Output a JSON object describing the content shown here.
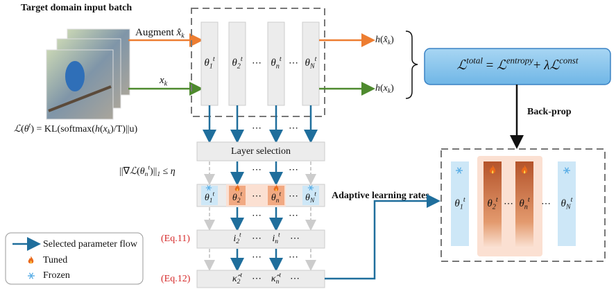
{
  "input_batch_title": "Target domain input batch",
  "augment_label": [
    {
      "t": "Augment "
    },
    {
      "m": "x̂"
    },
    {
      "sub": "k"
    }
  ],
  "x_label": [
    {
      "m": "x"
    },
    {
      "sub": "k"
    }
  ],
  "output_aug": [
    {
      "m": "h"
    },
    {
      "t": "("
    },
    {
      "m": "x̂"
    },
    {
      "sub": "k"
    },
    {
      "t": ")"
    }
  ],
  "output_orig": [
    {
      "m": "h"
    },
    {
      "t": "("
    },
    {
      "m": "x"
    },
    {
      "sub": "k"
    },
    {
      "t": ")"
    }
  ],
  "loss_total": [
    {
      "m": "ℒ"
    },
    {
      "sup": "total"
    },
    {
      "t": " = "
    },
    {
      "m": "ℒ"
    },
    {
      "sup": "entropy"
    },
    {
      "t": "+ "
    },
    {
      "m": "λℒ"
    },
    {
      "sup": "const"
    }
  ],
  "back_prop": "Back-prop",
  "loss_def": [
    {
      "m": "ℒ"
    },
    {
      "t": "("
    },
    {
      "m": "θ"
    },
    {
      "sup": "t"
    },
    {
      "t": ") = KL(softmax("
    },
    {
      "m": "h"
    },
    {
      "t": "("
    },
    {
      "m": "x"
    },
    {
      "sub": "k"
    },
    {
      "t": ")/T)||u)"
    }
  ],
  "layer_selection": "Layer selection",
  "grad_condition": [
    {
      "t": "||∇"
    },
    {
      "m": "ℒ"
    },
    {
      "t": "("
    },
    {
      "m": "θ"
    },
    {
      "sub": "n"
    },
    {
      "sup": "t"
    },
    {
      "t": ")||"
    },
    {
      "sub": "1"
    },
    {
      "t": " ≤ "
    },
    {
      "m": "η"
    }
  ],
  "adaptive_label": "Adaptive learning rates",
  "eq11": "(Eq.11)",
  "eq12": "(Eq.12)",
  "ellipsis": "⋯",
  "symbols": {
    "theta_1": [
      {
        "m": "θ"
      },
      {
        "sub": "1"
      },
      {
        "sup": "t"
      }
    ],
    "theta_2": [
      {
        "m": "θ"
      },
      {
        "sub": "2"
      },
      {
        "sup": "t"
      }
    ],
    "theta_n": [
      {
        "m": "θ"
      },
      {
        "sub": "n"
      },
      {
        "sup": "t"
      }
    ],
    "theta_N": [
      {
        "m": "θ"
      },
      {
        "sub": "N"
      },
      {
        "sup": "t"
      }
    ],
    "i_2": [
      {
        "m": "i"
      },
      {
        "sub": "2"
      },
      {
        "sup": "t"
      }
    ],
    "i_n": [
      {
        "m": "i"
      },
      {
        "sub": "n"
      },
      {
        "sup": "t"
      }
    ],
    "kappa_2": [
      {
        "m": "κ̂"
      },
      {
        "sub": "2"
      },
      {
        "sup": "t"
      }
    ],
    "kappa_n": [
      {
        "m": "κ̂"
      },
      {
        "sub": "n"
      },
      {
        "sup": "t"
      }
    ]
  },
  "legend": [
    "Selected parameter flow",
    "Tuned",
    "Frozen"
  ]
}
